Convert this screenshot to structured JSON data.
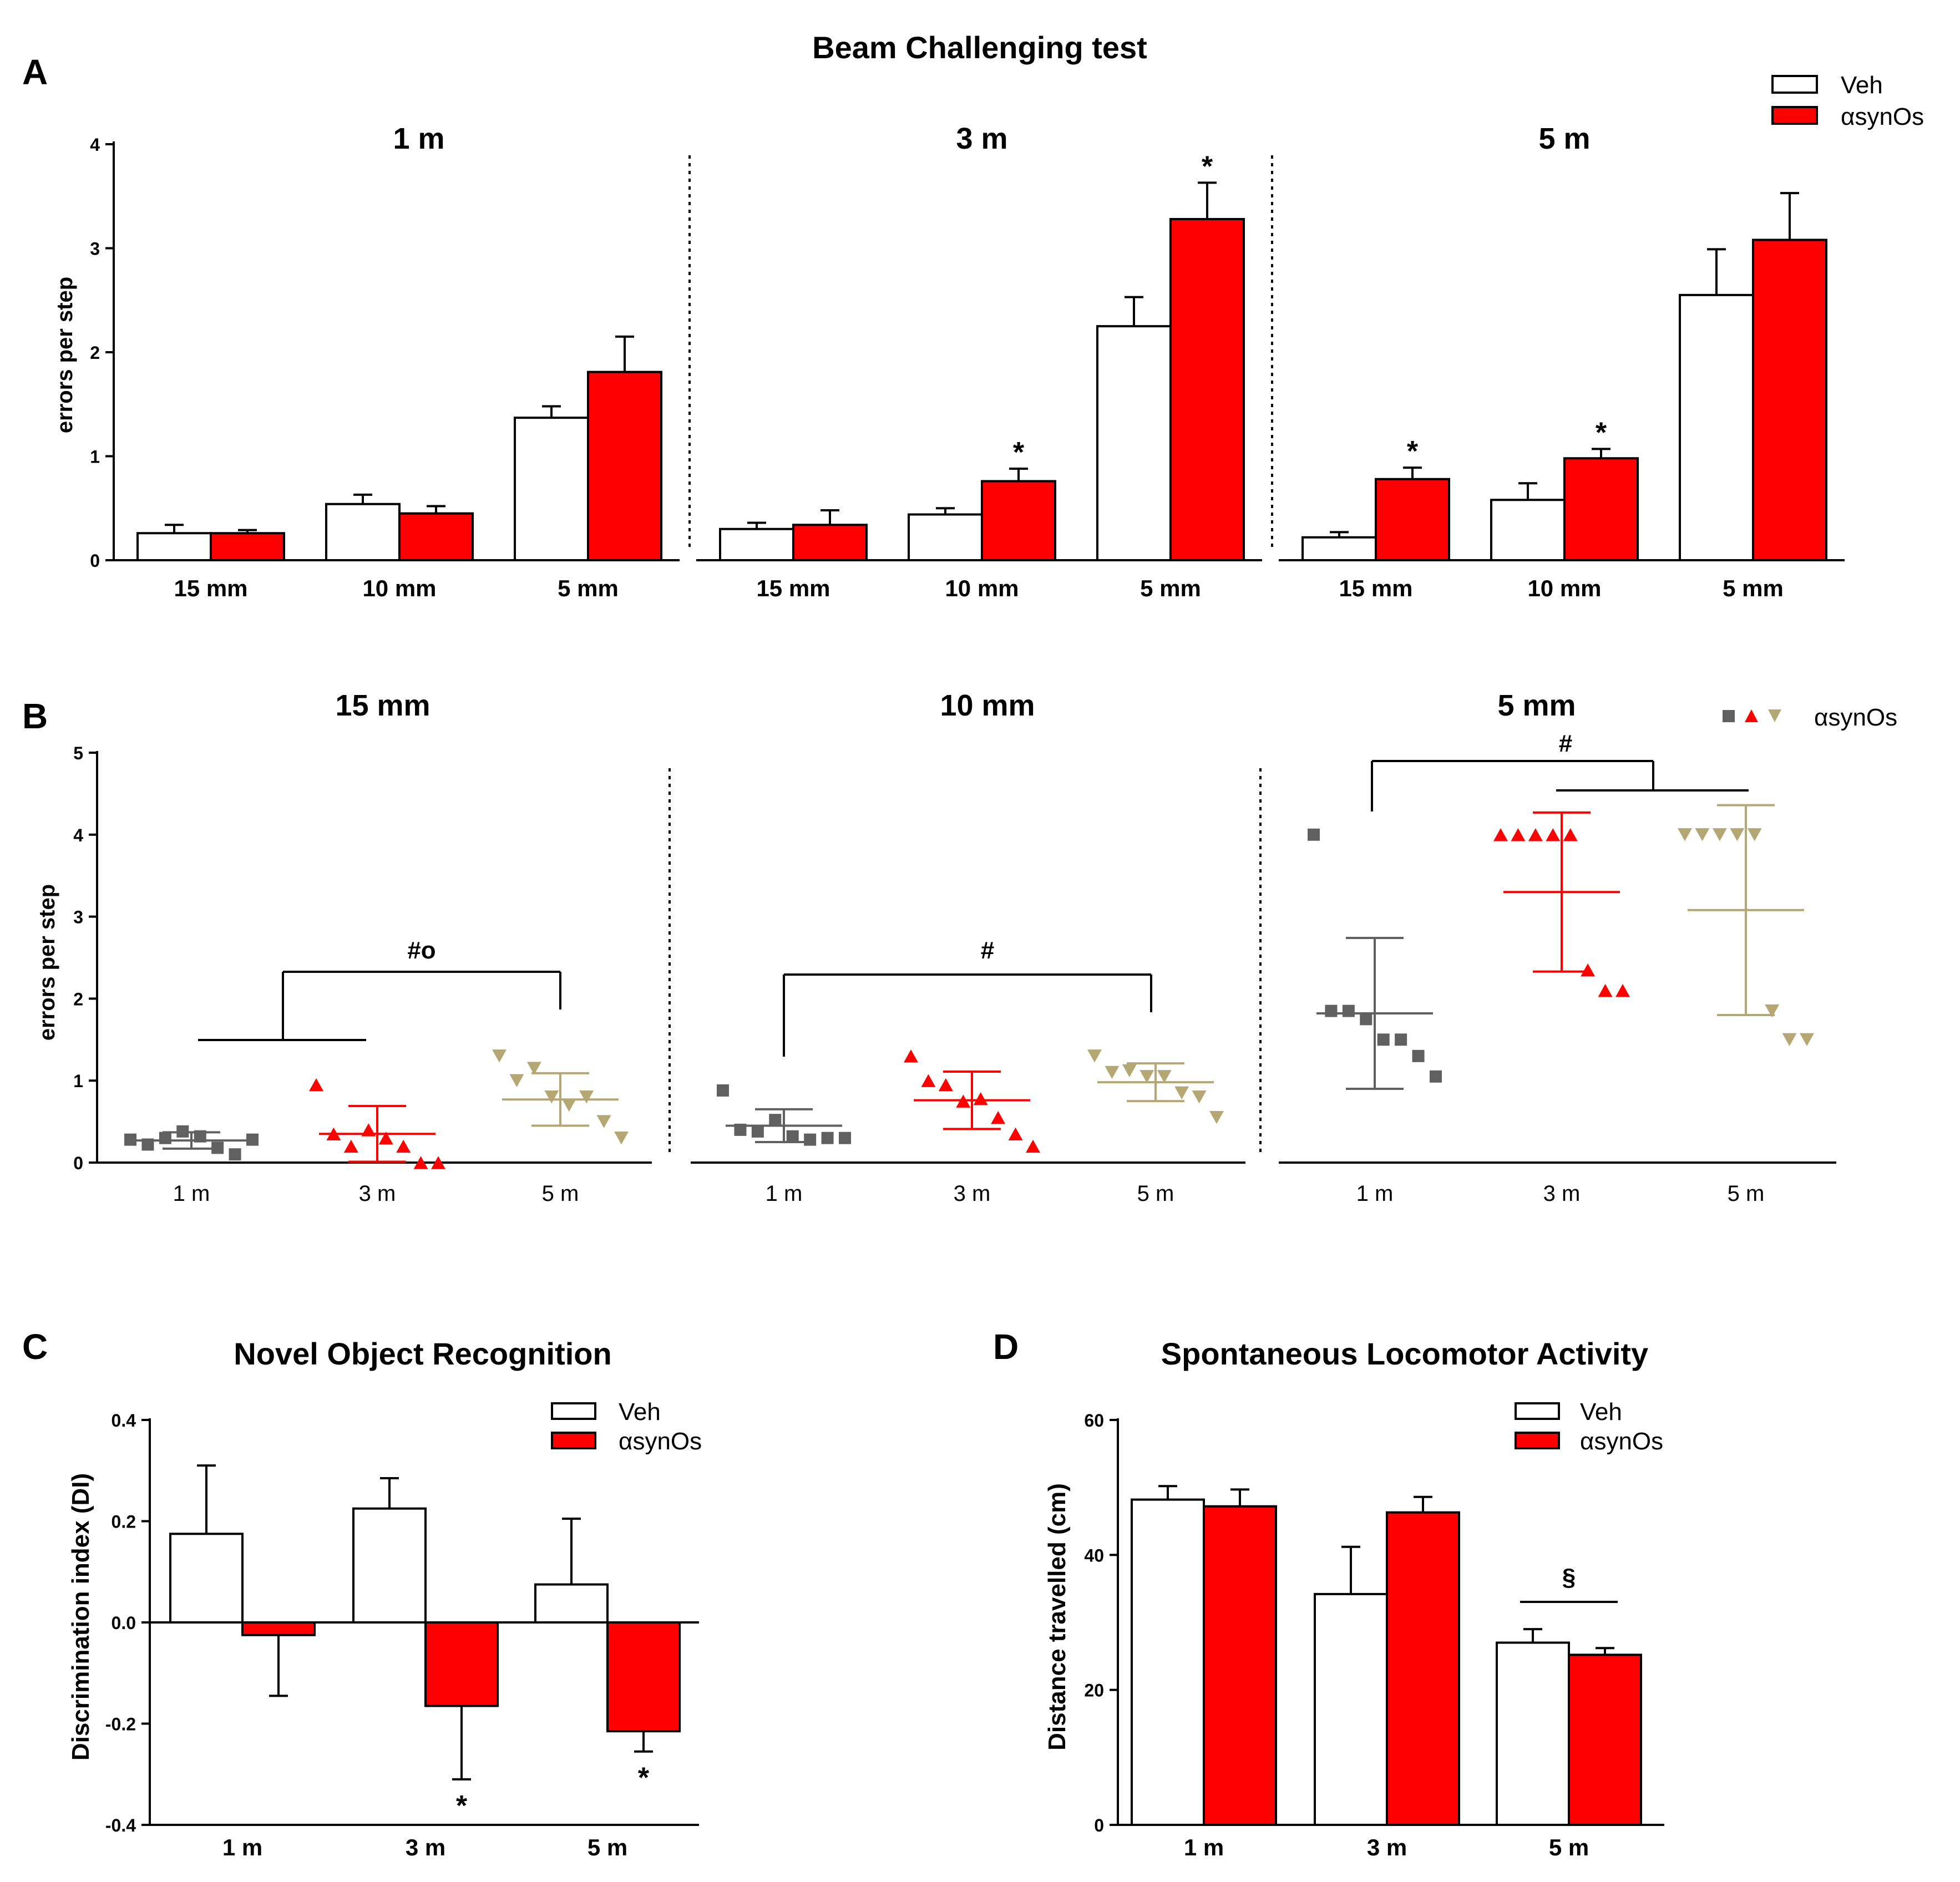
{
  "figure": {
    "panels": [
      "A",
      "B",
      "C",
      "D"
    ],
    "colors": {
      "veh": "#ffffff",
      "asyn": "#ff0000",
      "grey": "#606060",
      "red": "#ff0000",
      "tan": "#b5a774",
      "axis": "#000000"
    }
  },
  "chart_data": [
    {
      "id": "A",
      "type": "bar",
      "title": "Beam Challenging test",
      "ylabel": "errors per step",
      "ylim": [
        0,
        4
      ],
      "yticks": [
        0,
        1,
        2,
        3,
        4
      ],
      "legend": [
        "Veh",
        "αsynOs"
      ],
      "groups": [
        {
          "name": "1 m",
          "categories": [
            "15 mm",
            "10 mm",
            "5 mm"
          ],
          "series": [
            {
              "name": "Veh",
              "values": [
                0.26,
                0.54,
                1.37
              ],
              "err": [
                0.08,
                0.09,
                0.11
              ]
            },
            {
              "name": "αsynOs",
              "values": [
                0.26,
                0.45,
                1.81
              ],
              "err": [
                0.03,
                0.07,
                0.34
              ]
            }
          ],
          "annotations": [
            "",
            "",
            ""
          ]
        },
        {
          "name": "3 m",
          "categories": [
            "15 mm",
            "10 mm",
            "5 mm"
          ],
          "series": [
            {
              "name": "Veh",
              "values": [
                0.3,
                0.44,
                2.25
              ],
              "err": [
                0.06,
                0.06,
                0.28
              ]
            },
            {
              "name": "αsynOs",
              "values": [
                0.34,
                0.76,
                3.28
              ],
              "err": [
                0.14,
                0.12,
                0.35
              ]
            }
          ],
          "annotations": [
            "",
            "*",
            "*"
          ]
        },
        {
          "name": "5 m",
          "categories": [
            "15 mm",
            "10 mm",
            "5 mm"
          ],
          "series": [
            {
              "name": "Veh",
              "values": [
                0.22,
                0.58,
                2.55
              ],
              "err": [
                0.05,
                0.16,
                0.44
              ]
            },
            {
              "name": "αsynOs",
              "values": [
                0.78,
                0.98,
                3.08
              ],
              "err": [
                0.11,
                0.09,
                0.45
              ]
            }
          ],
          "annotations": [
            "*",
            "*",
            ""
          ]
        }
      ]
    },
    {
      "id": "B",
      "type": "scatter",
      "ylabel": "errors per step",
      "ylim": [
        0,
        5
      ],
      "yticks": [
        0,
        1,
        2,
        3,
        4,
        5
      ],
      "legend": "αsynOs",
      "groups": [
        {
          "name": "15 mm",
          "categories": [
            "1 m",
            "3 m",
            "5 m"
          ],
          "points": [
            [
              0.28,
              0.22,
              0.3,
              0.38,
              0.32,
              0.18,
              0.1,
              0.28
            ],
            [
              0.95,
              0.35,
              0.2,
              0.4,
              0.3,
              0.2,
              0.0,
              0.0
            ],
            [
              1.3,
              1.0,
              1.15,
              0.8,
              0.7,
              0.8,
              0.5,
              0.3
            ]
          ],
          "mean": [
            0.27,
            0.35,
            0.77
          ],
          "sd": [
            0.1,
            0.34,
            0.32
          ],
          "significance": "#o"
        },
        {
          "name": "10 mm",
          "categories": [
            "1 m",
            "3 m",
            "5 m"
          ],
          "points": [
            [
              0.88,
              0.4,
              0.38,
              0.52,
              0.32,
              0.28,
              0.3,
              0.3
            ],
            [
              1.3,
              1.0,
              0.95,
              0.75,
              0.78,
              0.55,
              0.35,
              0.2
            ],
            [
              1.3,
              1.1,
              1.12,
              1.05,
              1.05,
              0.85,
              0.8,
              0.55
            ]
          ],
          "mean": [
            0.45,
            0.76,
            0.98
          ],
          "sd": [
            0.2,
            0.35,
            0.23
          ],
          "significance": "#"
        },
        {
          "name": "5 mm",
          "categories": [
            "1 m",
            "3 m",
            "5 m"
          ],
          "points": [
            [
              4.0,
              1.85,
              1.85,
              1.75,
              1.5,
              1.5,
              1.3,
              1.05
            ],
            [
              4.0,
              4.0,
              4.0,
              4.0,
              4.0,
              2.35,
              2.1,
              2.1
            ],
            [
              4.0,
              4.0,
              4.0,
              4.0,
              4.0,
              1.85,
              1.5,
              1.5
            ]
          ],
          "mean": [
            1.82,
            3.3,
            3.08
          ],
          "sd": [
            0.92,
            0.97,
            1.28
          ],
          "significance": "#"
        }
      ]
    },
    {
      "id": "C",
      "type": "bar",
      "title": "Novel Object Recognition",
      "ylabel": "Discrimination index (DI)",
      "ylim": [
        -0.4,
        0.4
      ],
      "yticks": [
        "-0.4",
        "-0.2",
        "0.0",
        "0.2",
        "0.4"
      ],
      "categories": [
        "1 m",
        "3 m",
        "5 m"
      ],
      "series": [
        {
          "name": "Veh",
          "values": [
            0.175,
            0.225,
            0.075
          ],
          "err": [
            0.135,
            0.06,
            0.13
          ]
        },
        {
          "name": "αsynOs",
          "values": [
            -0.025,
            -0.165,
            -0.215
          ],
          "err": [
            0.12,
            0.145,
            0.04
          ]
        }
      ],
      "annotations": [
        "",
        "*",
        "*"
      ]
    },
    {
      "id": "D",
      "type": "bar",
      "title": "Spontaneous Locomotor Activity",
      "ylabel": "Distance travelled (cm)",
      "ylim": [
        0,
        60
      ],
      "yticks": [
        0,
        20,
        40,
        60
      ],
      "categories": [
        "1 m",
        "3 m",
        "5 m"
      ],
      "series": [
        {
          "name": "Veh",
          "values": [
            48.2,
            34.2,
            27.0
          ],
          "err": [
            2.0,
            7.0,
            2.0
          ]
        },
        {
          "name": "αsynOs",
          "values": [
            47.2,
            46.3,
            25.2
          ],
          "err": [
            2.5,
            2.3,
            1.0
          ]
        }
      ],
      "annotations": [
        "",
        "",
        "§"
      ]
    }
  ]
}
